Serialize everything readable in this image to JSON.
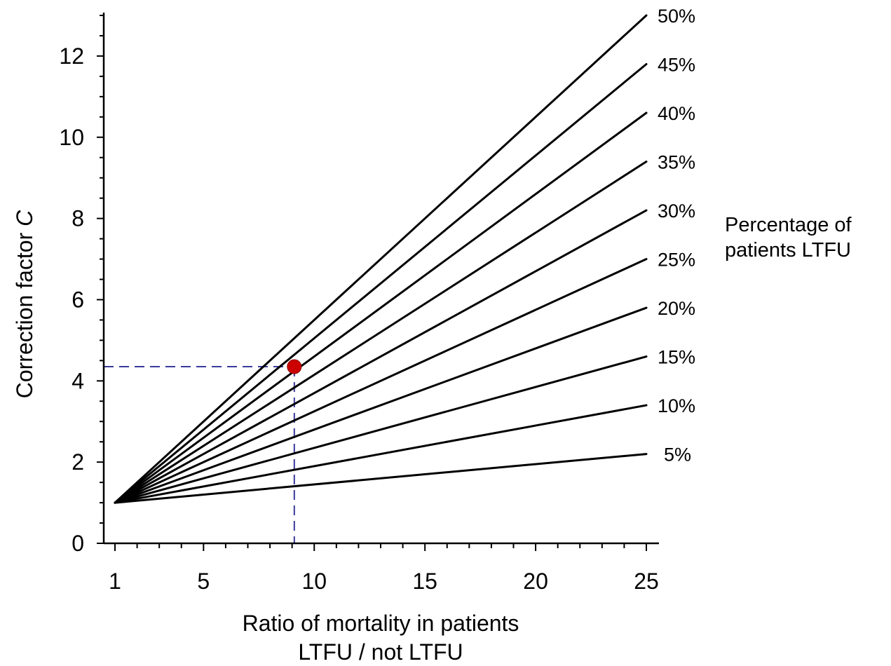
{
  "chart_data": {
    "type": "line",
    "xlabel": [
      "Ratio of mortality in patients",
      "LTFU / not LTFU"
    ],
    "ylabel": "Correction factor",
    "ylabel_italic": "C",
    "xlim": [
      1,
      25
    ],
    "ylim": [
      0,
      13
    ],
    "x_ticks": [
      "1",
      "5",
      "10",
      "15",
      "20",
      "25"
    ],
    "y_ticks": [
      "0",
      "2",
      "4",
      "6",
      "8",
      "10",
      "12"
    ],
    "legend_title": [
      "Percentage of",
      "patients LTFU"
    ],
    "series": [
      {
        "name": "5%",
        "x": [
          1,
          25
        ],
        "y": [
          1,
          2.2
        ]
      },
      {
        "name": "10%",
        "x": [
          1,
          25
        ],
        "y": [
          1,
          3.4
        ]
      },
      {
        "name": "15%",
        "x": [
          1,
          25
        ],
        "y": [
          1,
          4.6
        ]
      },
      {
        "name": "20%",
        "x": [
          1,
          25
        ],
        "y": [
          1,
          5.8
        ]
      },
      {
        "name": "25%",
        "x": [
          1,
          25
        ],
        "y": [
          1,
          7.0
        ]
      },
      {
        "name": "30%",
        "x": [
          1,
          25
        ],
        "y": [
          1,
          8.2
        ]
      },
      {
        "name": "35%",
        "x": [
          1,
          25
        ],
        "y": [
          1,
          9.4
        ]
      },
      {
        "name": "40%",
        "x": [
          1,
          25
        ],
        "y": [
          1,
          10.6
        ]
      },
      {
        "name": "45%",
        "x": [
          1,
          25
        ],
        "y": [
          1,
          11.8
        ]
      },
      {
        "name": "50%",
        "x": [
          1,
          25
        ],
        "y": [
          1,
          13.0
        ]
      }
    ],
    "highlight_point": {
      "x": 9.1,
      "y": 4.35,
      "color": "#cc0000"
    },
    "guide_line_color": "#3a3a9a",
    "line_color": "#000000",
    "grid": false
  }
}
